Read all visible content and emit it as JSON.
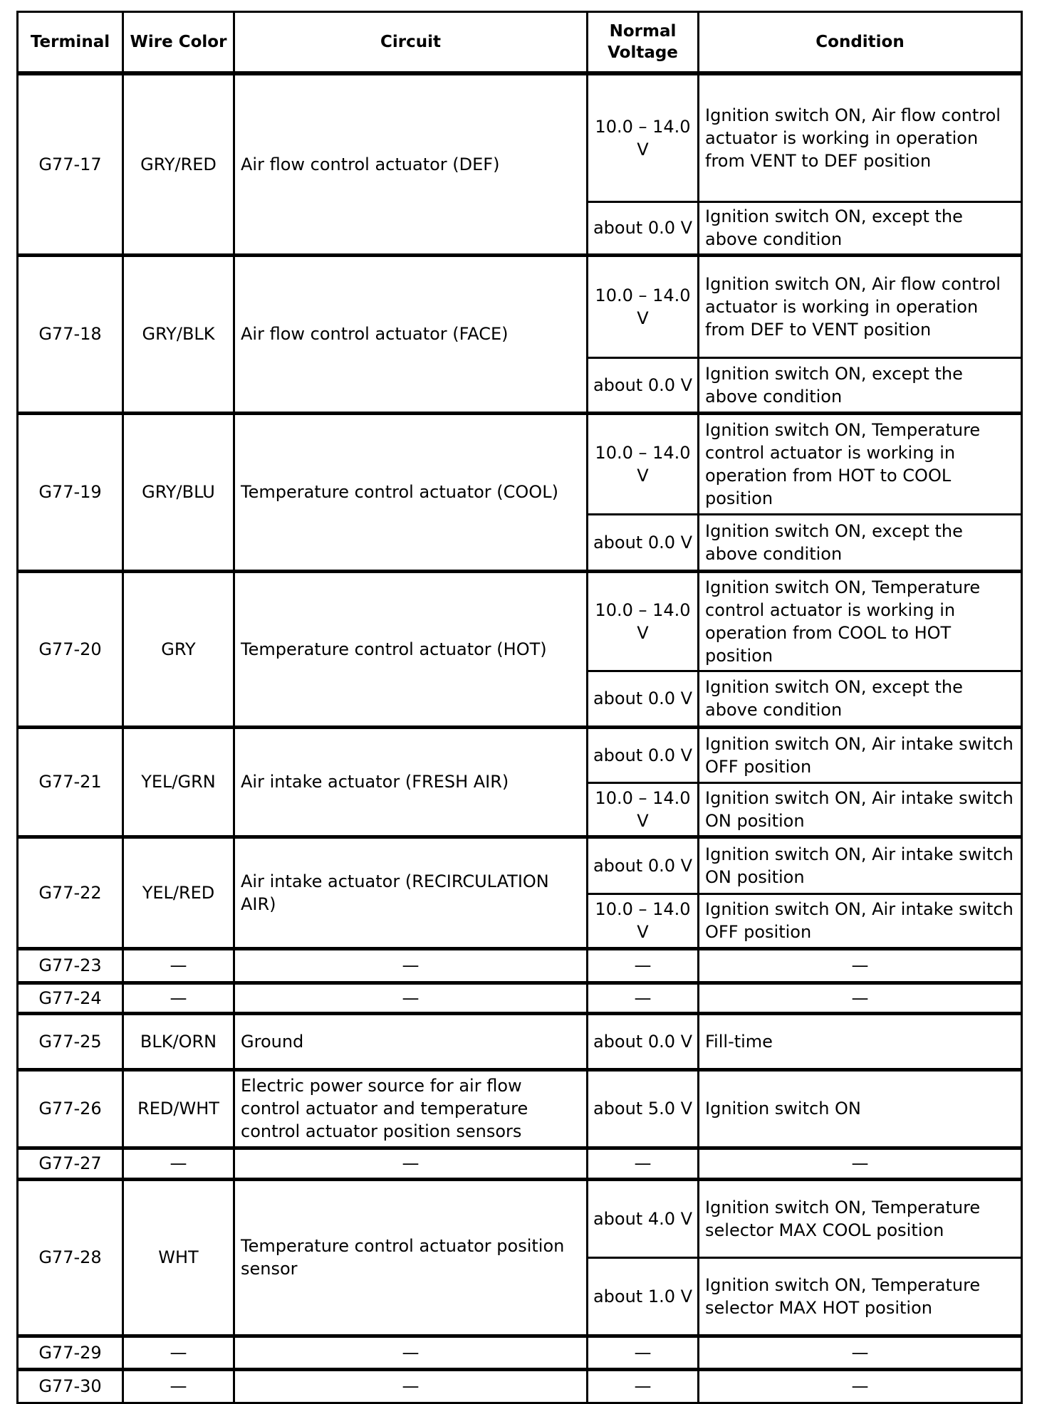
{
  "headers": [
    "Terminal",
    "Wire Color",
    "Circuit",
    "Normal Voltage",
    "Condition"
  ],
  "rows": [
    {
      "terminal": "G77-17",
      "wire": "GRY/RED",
      "circuit": "Air flow control actuator (DEF)",
      "entries": [
        {
          "voltage": "10.0 – 14.0 V",
          "condition": "Ignition switch ON, Air flow control actuator is working in operation from VENT to DEF position"
        },
        {
          "voltage": "about 0.0 V",
          "condition": "Ignition switch ON, except the above condition"
        }
      ]
    },
    {
      "terminal": "G77-18",
      "wire": "GRY/BLK",
      "circuit": "Air flow control actuator (FACE)",
      "entries": [
        {
          "voltage": "10.0 – 14.0 V",
          "condition": "Ignition switch ON, Air flow control actuator is working in operation from DEF to VENT position"
        },
        {
          "voltage": "about 0.0 V",
          "condition": "Ignition switch ON, except the above condition"
        }
      ]
    },
    {
      "terminal": "G77-19",
      "wire": "GRY/BLU",
      "circuit": "Temperature control actuator (COOL)",
      "entries": [
        {
          "voltage": "10.0 – 14.0 V",
          "condition": "Ignition switch ON, Temperature control actuator is working in operation from HOT to COOL position"
        },
        {
          "voltage": "about 0.0 V",
          "condition": "Ignition switch ON, except the above condition"
        }
      ]
    },
    {
      "terminal": "G77-20",
      "wire": "GRY",
      "circuit": "Temperature control actuator (HOT)",
      "entries": [
        {
          "voltage": "10.0 – 14.0 V",
          "condition": "Ignition switch ON, Temperature control actuator is working in operation from COOL to HOT position"
        },
        {
          "voltage": "about 0.0 V",
          "condition": "Ignition switch ON, except the above condition"
        }
      ]
    },
    {
      "terminal": "G77-21",
      "wire": "YEL/GRN",
      "circuit": "Air intake actuator (FRESH AIR)",
      "entries": [
        {
          "voltage": "about 0.0 V",
          "condition": "Ignition switch ON, Air intake switch OFF position"
        },
        {
          "voltage": "10.0 – 14.0 V",
          "condition": "Ignition switch ON, Air intake switch ON position"
        }
      ]
    },
    {
      "terminal": "G77-22",
      "wire": "YEL/RED",
      "circuit": "Air intake actuator (RECIRCULATION AIR)",
      "entries": [
        {
          "voltage": "about 0.0 V",
          "condition": "Ignition switch ON, Air intake switch ON position"
        },
        {
          "voltage": "10.0 – 14.0 V",
          "condition": "Ignition switch ON, Air intake switch OFF position"
        }
      ]
    },
    {
      "terminal": "G77-23",
      "wire": "—",
      "circuit": "—",
      "entries": [
        {
          "voltage": "—",
          "condition": "—"
        }
      ]
    },
    {
      "terminal": "G77-24",
      "wire": "—",
      "circuit": "—",
      "entries": [
        {
          "voltage": "—",
          "condition": "—"
        }
      ]
    },
    {
      "terminal": "G77-25",
      "wire": "BLK/ORN",
      "circuit": "Ground",
      "entries": [
        {
          "voltage": "about 0.0 V",
          "condition": "Fill-time"
        }
      ]
    },
    {
      "terminal": "G77-26",
      "wire": "RED/WHT",
      "circuit": "Electric power source for air flow control actuator and temperature control actuator position sensors",
      "entries": [
        {
          "voltage": "about 5.0 V",
          "condition": "Ignition switch ON"
        }
      ]
    },
    {
      "terminal": "G77-27",
      "wire": "—",
      "circuit": "—",
      "entries": [
        {
          "voltage": "—",
          "condition": "—"
        }
      ]
    },
    {
      "terminal": "G77-28",
      "wire": "WHT",
      "circuit": "Temperature control actuator position sensor",
      "entries": [
        {
          "voltage": "about 4.0 V",
          "condition": "Ignition switch ON, Temperature selector MAX COOL position"
        },
        {
          "voltage": "about 1.0 V",
          "condition": "Ignition switch ON, Temperature selector MAX HOT position"
        }
      ]
    },
    {
      "terminal": "G77-29",
      "wire": "—",
      "circuit": "—",
      "entries": [
        {
          "voltage": "—",
          "condition": "—"
        }
      ]
    },
    {
      "terminal": "G77-30",
      "wire": "—",
      "circuit": "—",
      "entries": [
        {
          "voltage": "—",
          "condition": "—"
        }
      ]
    }
  ]
}
